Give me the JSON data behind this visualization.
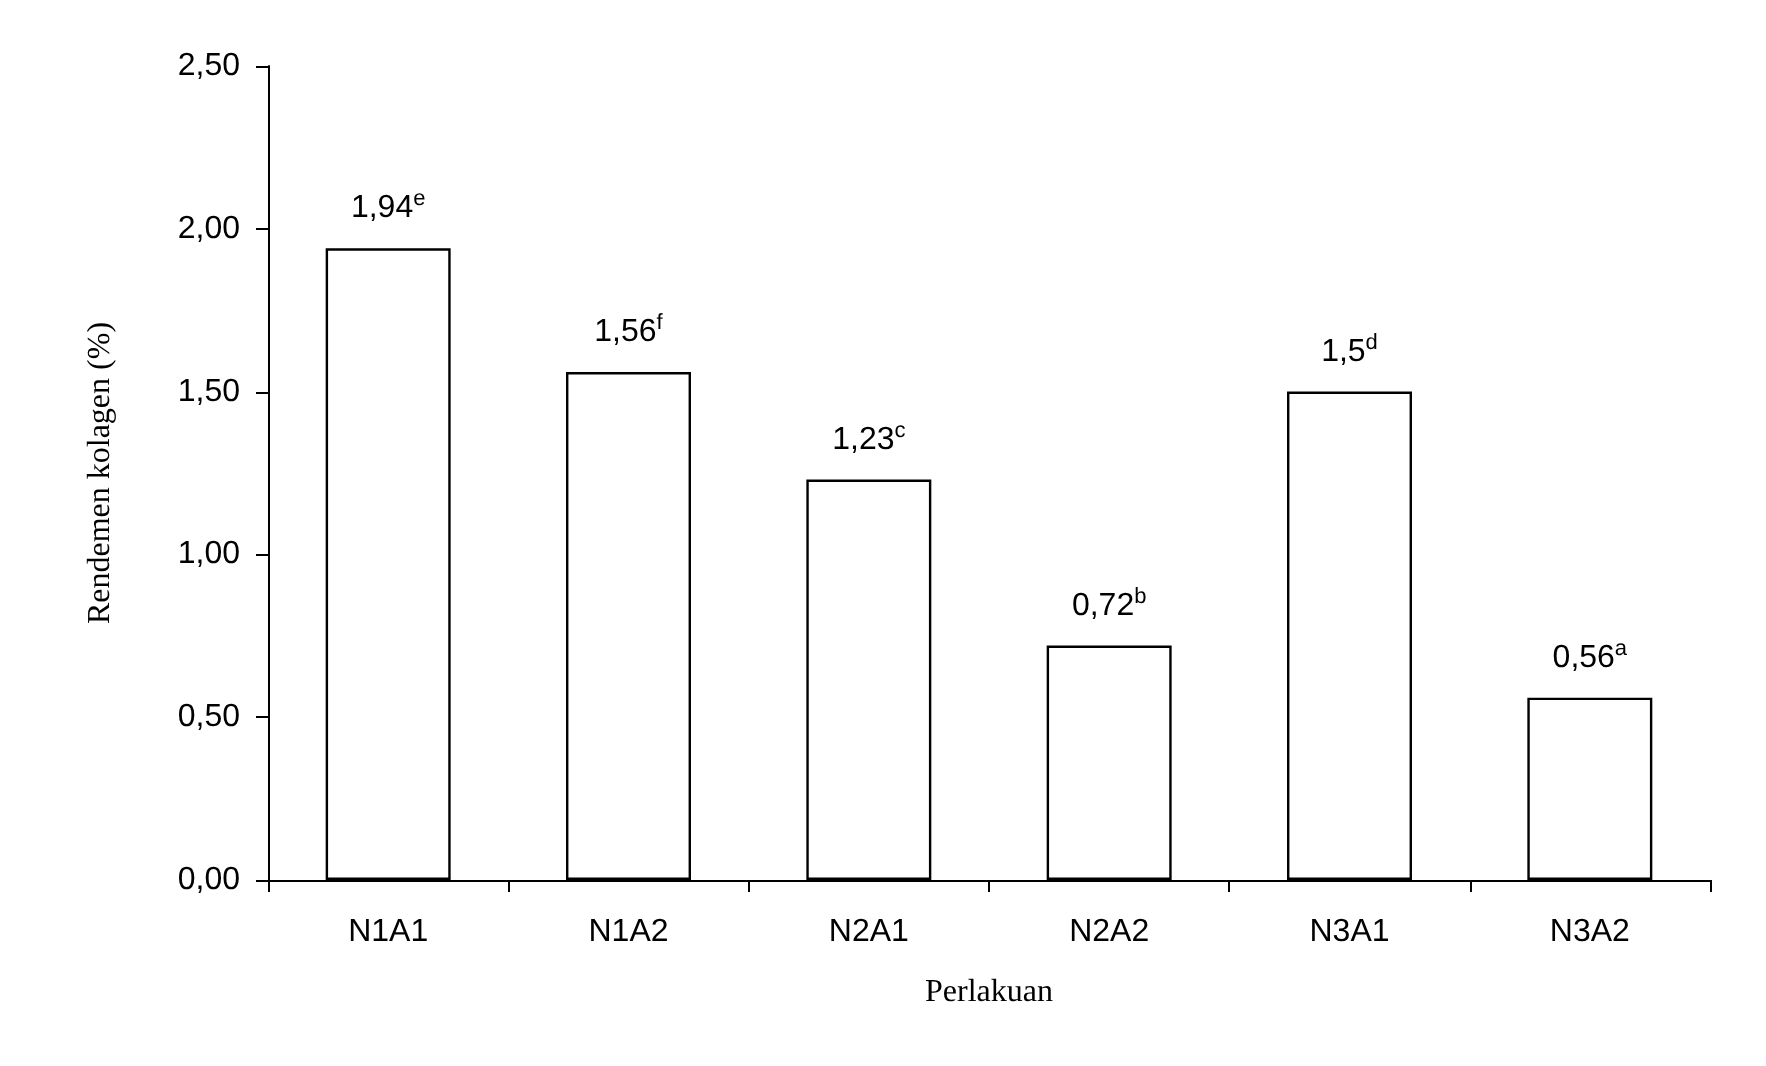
{
  "chart_data": {
    "type": "bar",
    "xlabel": "Perlakuan",
    "ylabel": "Rendemen kolagen (%)",
    "categories": [
      "N1A1",
      "N1A2",
      "N2A1",
      "N2A2",
      "N3A1",
      "N3A2"
    ],
    "values": [
      1.94,
      1.56,
      1.23,
      0.72,
      1.5,
      0.56
    ],
    "value_labels": [
      "1,94$^{e}$",
      "1,56$^{f}$",
      "1,23$^{c}$",
      "0,72$^{b}$",
      "1,5$^{d}$",
      "0,56$^{a}$"
    ],
    "color": "#ffffff",
    "ylim": [
      0,
      2.5
    ],
    "yticks": [
      {
        "value": 0,
        "label": "0,00"
      },
      {
        "value": 0.5,
        "label": "0,50"
      },
      {
        "value": 1,
        "label": "1,00"
      },
      {
        "value": 1.5,
        "label": "1,50"
      },
      {
        "value": 2,
        "label": "2,00"
      },
      {
        "value": 2.5,
        "label": "2,50"
      }
    ],
    "grid": false
  }
}
